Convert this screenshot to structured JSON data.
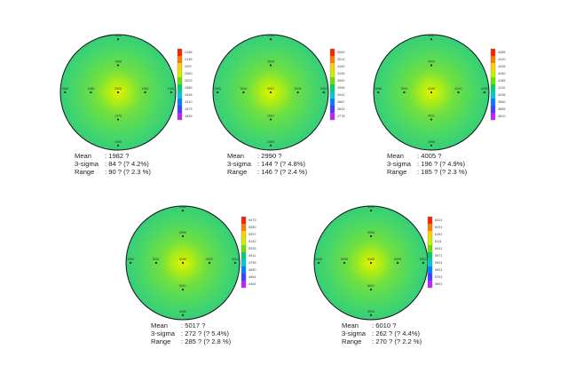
{
  "chart_data": [
    {
      "type": "heatmap",
      "subtype": "wafer-thickness-map",
      "points": [
        {
          "pos": "top",
          "value": "1986"
        },
        {
          "pos": "upper",
          "value": "1986"
        },
        {
          "pos": "left-edge",
          "value": "1985"
        },
        {
          "pos": "left",
          "value": "1986"
        },
        {
          "pos": "center",
          "value": "2005"
        },
        {
          "pos": "right",
          "value": "1982"
        },
        {
          "pos": "right-edge",
          "value": "1981"
        },
        {
          "pos": "lower",
          "value": "1976"
        },
        {
          "pos": "bottom",
          "value": "1990"
        }
      ],
      "colorbar_ticks": [
        "2168",
        "2135",
        "2097",
        "2060",
        "2023",
        "1985",
        "1948",
        "1910",
        "1873",
        "1835"
      ],
      "stats": [
        {
          "label": "Mean",
          "value": ": 1982 ?"
        },
        {
          "label": "3-sigma",
          "value": ": 84 ? (? 4.2%)"
        },
        {
          "label": "Range",
          "value": ": 90 ? (? 2.3 %)"
        }
      ]
    },
    {
      "type": "heatmap",
      "subtype": "wafer-thickness-map",
      "points": [
        {
          "pos": "top",
          "value": "2985"
        },
        {
          "pos": "upper",
          "value": "3006"
        },
        {
          "pos": "left-edge",
          "value": "2990"
        },
        {
          "pos": "left",
          "value": "3000"
        },
        {
          "pos": "center",
          "value": "3001"
        },
        {
          "pos": "right",
          "value": "3005"
        },
        {
          "pos": "right-edge",
          "value": "3060"
        },
        {
          "pos": "lower",
          "value": "2991"
        },
        {
          "pos": "bottom",
          "value": "2983"
        }
      ],
      "colorbar_ticks": [
        "3269",
        "3214",
        "3160",
        "3105",
        "3050",
        "2996",
        "2941",
        "2887",
        "2832",
        "2778"
      ],
      "stats": [
        {
          "label": "Mean",
          "value": ": 2990 ?"
        },
        {
          "label": "3-sigma",
          "value": ": 144 ? (? 4.8%)"
        },
        {
          "label": "Range",
          "value": ": 146 ? (? 2.4 %)"
        }
      ]
    },
    {
      "type": "heatmap",
      "subtype": "wafer-thickness-map",
      "points": [
        {
          "pos": "top",
          "value": "3981"
        },
        {
          "pos": "upper",
          "value": "4006"
        },
        {
          "pos": "left-edge",
          "value": "3986"
        },
        {
          "pos": "left",
          "value": "3990"
        },
        {
          "pos": "center",
          "value": "4100"
        },
        {
          "pos": "right",
          "value": "4010"
        },
        {
          "pos": "right-edge",
          "value": "3995"
        },
        {
          "pos": "lower",
          "value": "4001"
        },
        {
          "pos": "bottom",
          "value": "3996"
        }
      ],
      "colorbar_ticks": [
        "4485",
        "4410",
        "4335",
        "4260",
        "4185",
        "4110",
        "4035",
        "3960",
        "3885",
        "3810"
      ],
      "stats": [
        {
          "label": "Mean",
          "value": ": 4005 ?"
        },
        {
          "label": "3-sigma",
          "value": ": 196 ? (? 4.9%)"
        },
        {
          "label": "Range",
          "value": ": 185 ? (? 2.3 %)"
        }
      ]
    },
    {
      "type": "heatmap",
      "subtype": "wafer-thickness-map",
      "points": [
        {
          "pos": "top",
          "value": "4980"
        },
        {
          "pos": "upper",
          "value": "5006"
        },
        {
          "pos": "left-edge",
          "value": "4990"
        },
        {
          "pos": "left",
          "value": "5001"
        },
        {
          "pos": "center",
          "value": "5200"
        },
        {
          "pos": "right",
          "value": "5002"
        },
        {
          "pos": "right-edge",
          "value": "5010"
        },
        {
          "pos": "lower",
          "value": "5001"
        },
        {
          "pos": "bottom",
          "value": "4985"
        }
      ],
      "colorbar_ticks": [
        "5473",
        "5350",
        "5257",
        "5142",
        "5026",
        "4911",
        "4795",
        "4680",
        "4564",
        "4454"
      ],
      "stats": [
        {
          "label": "Mean",
          "value": ": 5017 ?"
        },
        {
          "label": "3-sigma",
          "value": ": 272 ? (? 5.4%)"
        },
        {
          "label": "Range",
          "value": ": 285 ? (? 2.8 %)"
        }
      ]
    },
    {
      "type": "heatmap",
      "subtype": "wafer-thickness-map",
      "points": [
        {
          "pos": "top",
          "value": "5992"
        },
        {
          "pos": "upper",
          "value": "6006"
        },
        {
          "pos": "left-edge",
          "value": "5998"
        },
        {
          "pos": "left",
          "value": "5995"
        },
        {
          "pos": "center",
          "value": "6150"
        },
        {
          "pos": "right",
          "value": "6005"
        },
        {
          "pos": "right-edge",
          "value": "6002"
        },
        {
          "pos": "lower",
          "value": "6001"
        },
        {
          "pos": "bottom",
          "value": "5990"
        }
      ],
      "colorbar_ticks": [
        "6321",
        "6251",
        "6181",
        "6111",
        "6041",
        "5971",
        "5901",
        "5831",
        "5761",
        "5691"
      ],
      "stats": [
        {
          "label": "Mean",
          "value": ": 6010 ?"
        },
        {
          "label": "3-sigma",
          "value": ": 262 ? (? 4.4%)"
        },
        {
          "label": "Range",
          "value": ": 270 ? (? 2.2 %)"
        }
      ]
    }
  ]
}
